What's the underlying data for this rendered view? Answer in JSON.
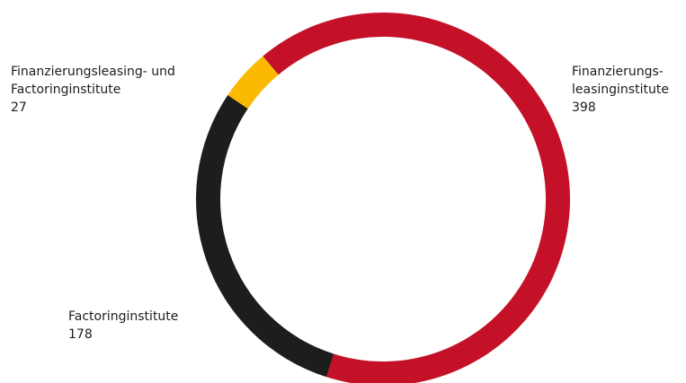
{
  "chart_data": {
    "type": "pie",
    "variant": "donut",
    "title": "",
    "start_angle_deg": -40,
    "direction": "clockwise",
    "slices": [
      {
        "key": "leasing",
        "label_lines": [
          "Finanzierungs-",
          "leasinginstitute"
        ],
        "value": 398,
        "value_label": "398",
        "color": "#c41127"
      },
      {
        "key": "factoring",
        "label_lines": [
          "Factoringinstitute"
        ],
        "value": 178,
        "value_label": "178",
        "color": "#1d1d1b"
      },
      {
        "key": "both",
        "label_lines": [
          "Finanzierungsleasing- und",
          "Factoringinstitute"
        ],
        "value": 27,
        "value_label": "27",
        "color": "#fbb900"
      }
    ],
    "legend": "none",
    "grid": false
  }
}
